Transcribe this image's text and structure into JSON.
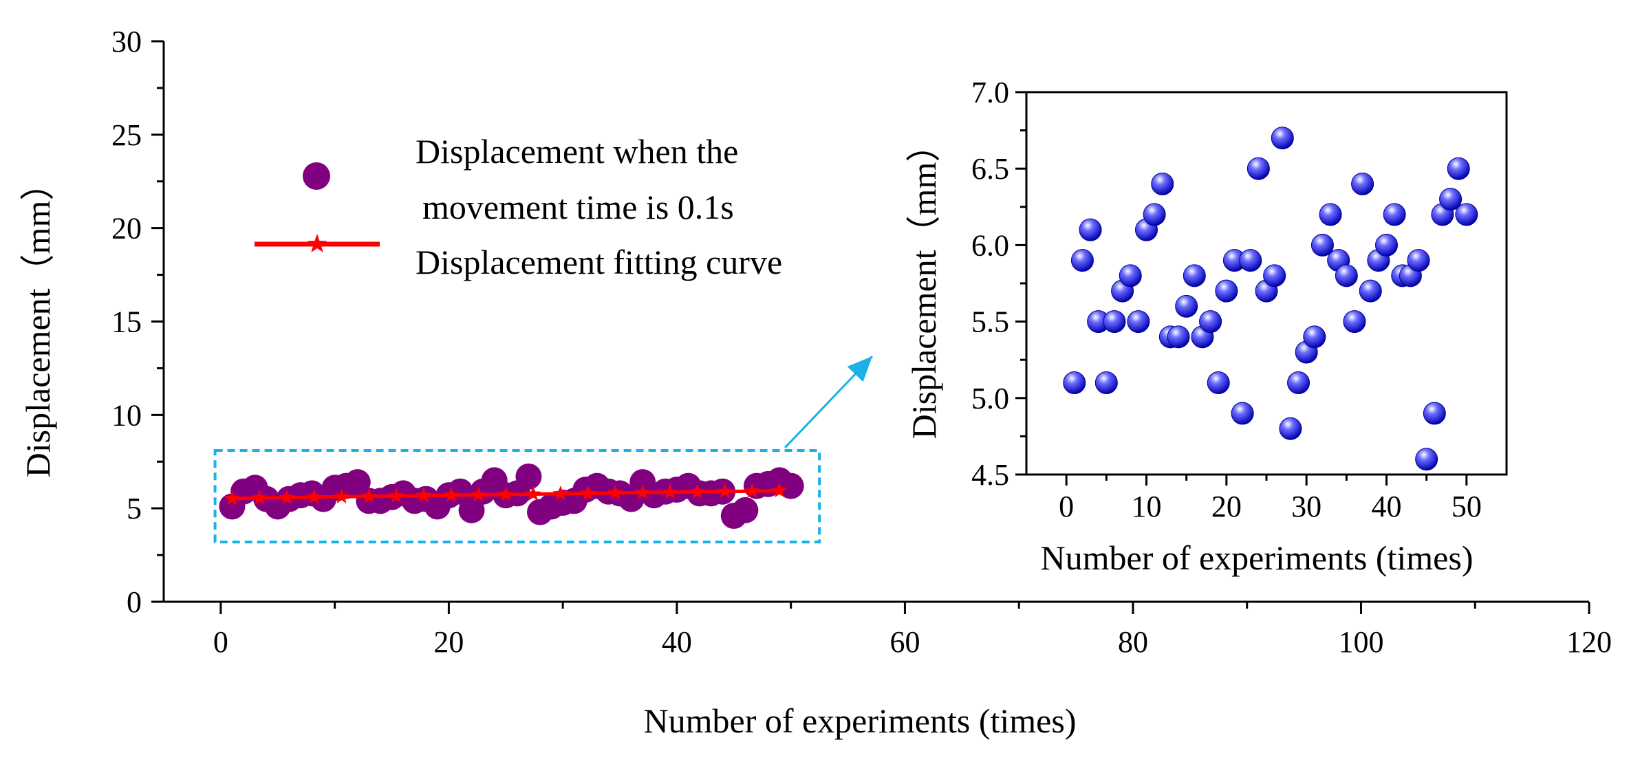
{
  "chart_data": [
    {
      "id": "main",
      "type": "scatter",
      "xlabel": "Number of experiments (times)",
      "ylabel": "Displacement（mm）",
      "xlim": [
        -5,
        120
      ],
      "ylim": [
        0,
        30
      ],
      "xticks": [
        0,
        20,
        40,
        60,
        80,
        100,
        120
      ],
      "yticks": [
        0,
        5,
        10,
        15,
        20,
        25,
        30
      ],
      "series": [
        {
          "name": "Displacement when the movement time is 0.1s",
          "legend_line1": "Displacement when the",
          "legend_line2": "movement time is 0.1s",
          "marker": "circle",
          "color": "#800080",
          "x": [
            1,
            2,
            3,
            4,
            5,
            6,
            7,
            8,
            9,
            10,
            11,
            12,
            13,
            14,
            15,
            16,
            17,
            18,
            19,
            20,
            21,
            22,
            23,
            24,
            25,
            26,
            27,
            28,
            29,
            30,
            31,
            32,
            33,
            34,
            35,
            36,
            37,
            38,
            39,
            40,
            41,
            42,
            43,
            44,
            45,
            46,
            47,
            48,
            49,
            50
          ],
          "y": [
            5.1,
            5.9,
            6.1,
            5.5,
            5.1,
            5.5,
            5.7,
            5.8,
            5.5,
            6.1,
            6.2,
            6.4,
            5.4,
            5.4,
            5.6,
            5.8,
            5.4,
            5.5,
            5.1,
            5.7,
            5.9,
            4.9,
            5.9,
            6.5,
            5.7,
            5.8,
            6.7,
            4.8,
            5.1,
            5.3,
            5.4,
            6.0,
            6.2,
            5.9,
            5.8,
            5.5,
            6.4,
            5.7,
            5.9,
            6.0,
            6.2,
            5.8,
            5.8,
            5.9,
            4.6,
            4.9,
            6.2,
            6.3,
            6.5,
            6.2
          ]
        },
        {
          "name": "Displacement fitting curve",
          "marker": "star",
          "color": "#ff0000",
          "x": [
            1,
            3.4,
            5.8,
            8.2,
            10.6,
            13,
            15.4,
            17.8,
            20.2,
            22.6,
            25,
            27.4,
            29.8,
            32.2,
            34.6,
            37,
            39.4,
            41.8,
            44.2,
            46.6,
            49
          ],
          "y": [
            5.52,
            5.55,
            5.57,
            5.6,
            5.62,
            5.64,
            5.66,
            5.68,
            5.7,
            5.72,
            5.74,
            5.76,
            5.78,
            5.8,
            5.82,
            5.84,
            5.86,
            5.88,
            5.9,
            5.92,
            5.94
          ]
        }
      ],
      "highlight_box": {
        "x": [
          -0.5,
          52.5
        ],
        "y": [
          3.2,
          8.1
        ],
        "color": "#1ab0e8"
      },
      "arrow_color": "#1ab0e8"
    },
    {
      "id": "inset",
      "type": "scatter",
      "xlabel": "Number of experiments (times)",
      "ylabel": "Displacement（mm）",
      "xlim": [
        -5,
        55
      ],
      "ylim": [
        4.5,
        7.0
      ],
      "xticks": [
        0,
        10,
        20,
        30,
        40,
        50
      ],
      "ytick_labels": [
        "4.5",
        "5.0",
        "5.5",
        "6.0",
        "6.5",
        "7.0"
      ],
      "series": [
        {
          "name": "Displacement",
          "marker": "sphere",
          "color": "#1a1aff",
          "x": [
            1,
            2,
            3,
            4,
            5,
            6,
            7,
            8,
            9,
            10,
            11,
            12,
            13,
            14,
            15,
            16,
            17,
            18,
            19,
            20,
            21,
            22,
            23,
            24,
            25,
            26,
            27,
            28,
            29,
            30,
            31,
            32,
            33,
            34,
            35,
            36,
            37,
            38,
            39,
            40,
            41,
            42,
            43,
            44,
            45,
            46,
            47,
            48,
            49,
            50
          ],
          "y": [
            5.1,
            5.9,
            6.1,
            5.5,
            5.1,
            5.5,
            5.7,
            5.8,
            5.5,
            6.1,
            6.2,
            6.4,
            5.4,
            5.4,
            5.6,
            5.8,
            5.4,
            5.5,
            5.1,
            5.7,
            5.9,
            4.9,
            5.9,
            6.5,
            5.7,
            5.8,
            6.7,
            4.8,
            5.1,
            5.3,
            5.4,
            6.0,
            6.2,
            5.9,
            5.8,
            5.5,
            6.4,
            5.7,
            5.9,
            6.0,
            6.2,
            5.8,
            5.8,
            5.9,
            4.6,
            4.9,
            6.2,
            6.3,
            6.5,
            6.2
          ]
        }
      ]
    }
  ]
}
